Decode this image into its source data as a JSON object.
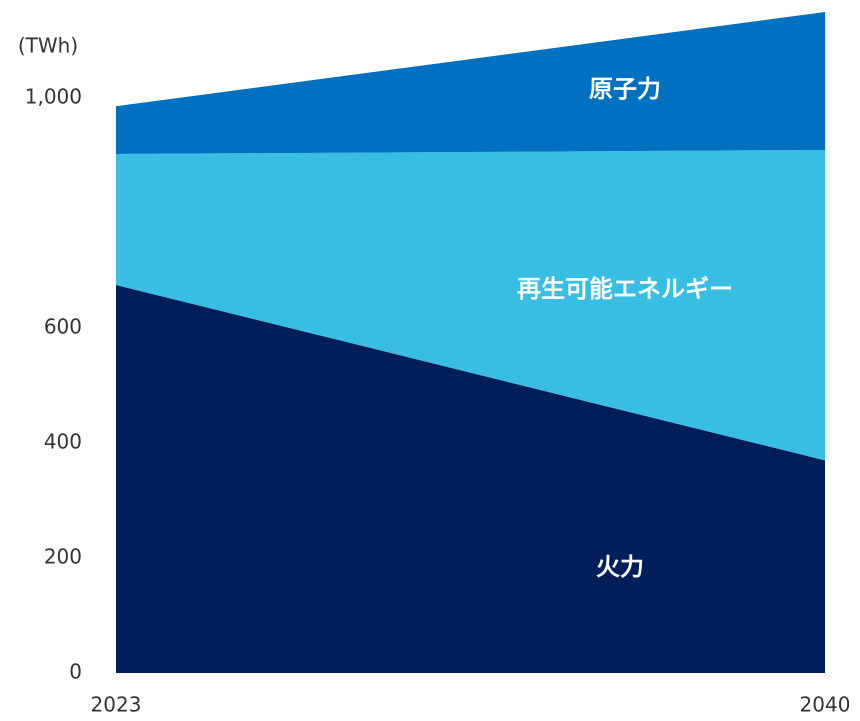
{
  "chart_data": {
    "type": "stacked_area",
    "y_axis_label": "(TWh)",
    "x": [
      2023,
      2040
    ],
    "xlim": [
      2023,
      2040
    ],
    "xticks": [
      2023,
      2040
    ],
    "ylim": [
      0,
      1150
    ],
    "yticks": [
      0,
      200,
      400,
      600,
      {
        "value": 1000,
        "label": "1,000"
      }
    ],
    "yticks_extra": [],
    "series": [
      {
        "name": "火力",
        "color": "#001e5a",
        "values": [
          675,
          370
        ]
      },
      {
        "name": "再生可能エネルギー",
        "color": "#38bde3",
        "values": [
          228,
          540
        ]
      },
      {
        "name": "原子力",
        "color": "#0070c0",
        "values": [
          83,
          240
        ]
      }
    ]
  }
}
